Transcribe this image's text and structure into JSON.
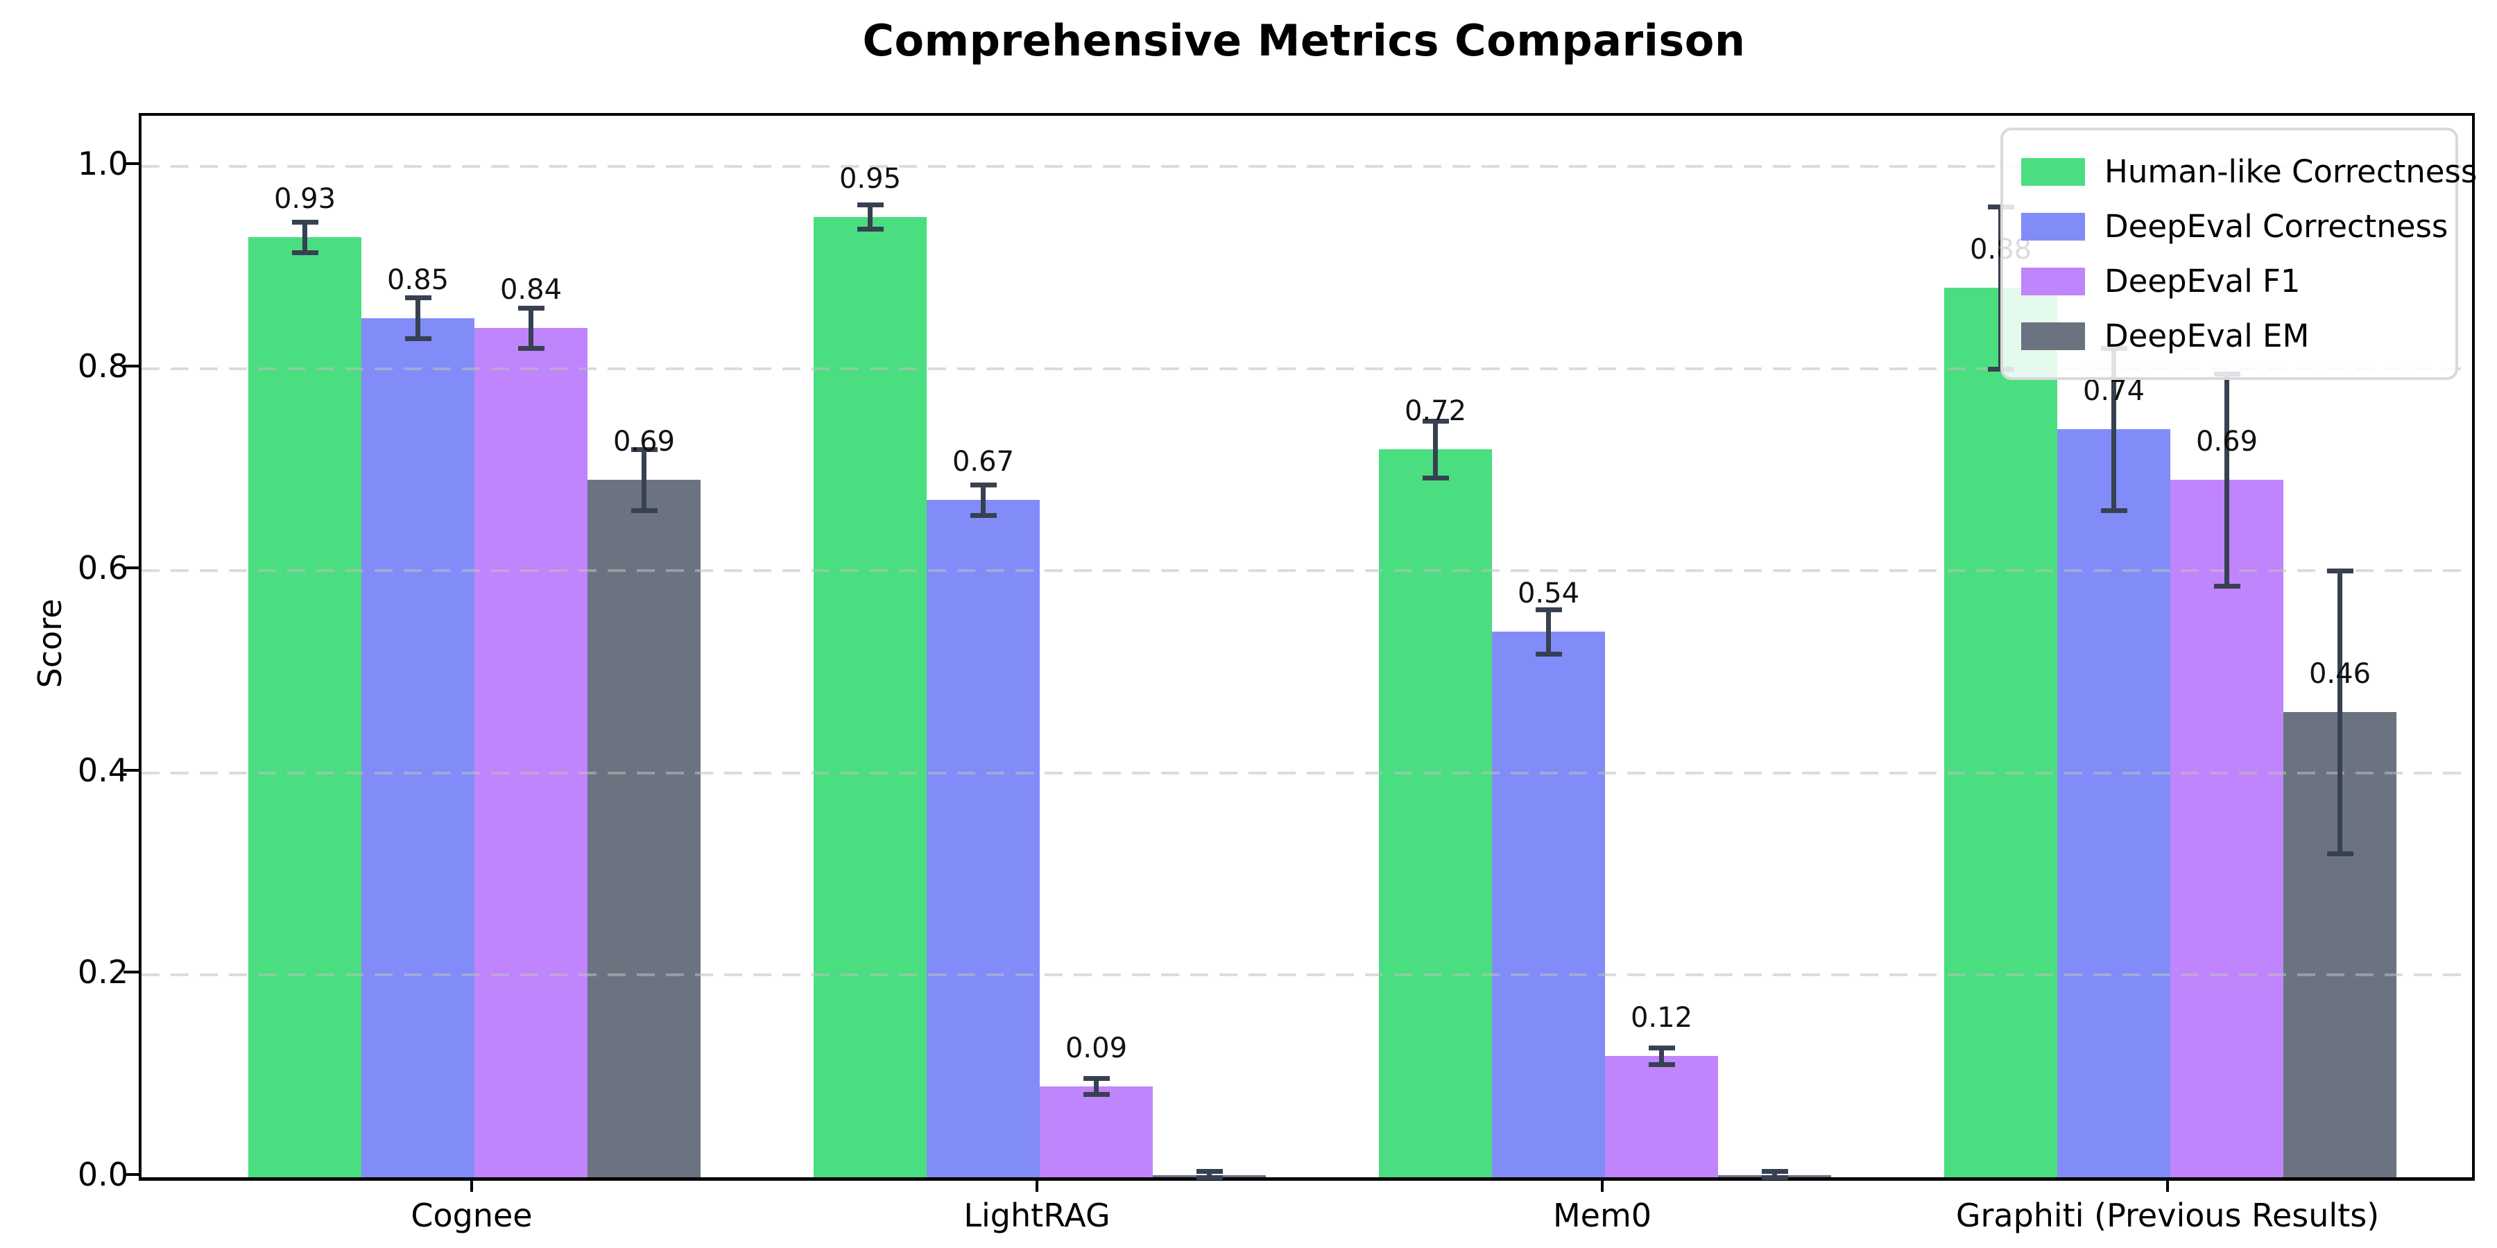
{
  "chart_data": {
    "type": "bar",
    "title": "Comprehensive Metrics Comparison",
    "ylabel": "Score",
    "xlabel": "",
    "categories": [
      "Cognee",
      "LightRAG",
      "Mem0",
      "Graphiti (Previous Results)"
    ],
    "series": [
      {
        "name": "Human-like Correctness",
        "color": "#4ade80",
        "values": [
          0.93,
          0.95,
          0.72,
          0.88
        ],
        "errors": [
          0.015,
          0.012,
          0.028,
          0.08
        ],
        "labels": [
          "0.93",
          "0.95",
          "0.72",
          "0.88"
        ]
      },
      {
        "name": "DeepEval Correctness",
        "color": "#818cf8",
        "values": [
          0.85,
          0.67,
          0.54,
          0.74
        ],
        "errors": [
          0.02,
          0.015,
          0.022,
          0.08
        ],
        "labels": [
          "0.85",
          "0.67",
          "0.54",
          "0.74"
        ]
      },
      {
        "name": "DeepEval F1",
        "color": "#c084fc",
        "values": [
          0.84,
          0.09,
          0.12,
          0.69
        ],
        "errors": [
          0.02,
          0.008,
          0.008,
          0.105
        ],
        "labels": [
          "0.84",
          "0.09",
          "0.12",
          "0.69"
        ]
      },
      {
        "name": "DeepEval EM",
        "color": "#6b7280",
        "values": [
          0.69,
          0.002,
          0.002,
          0.46
        ],
        "errors": [
          0.03,
          0.004,
          0.004,
          0.14
        ],
        "labels": [
          "0.69",
          "",
          "",
          "0.46"
        ]
      }
    ],
    "error_bar_color": "#374151",
    "yticks": [
      "0.0",
      "0.2",
      "0.4",
      "0.6",
      "0.8",
      "1.0"
    ],
    "ytick_values": [
      0.0,
      0.2,
      0.4,
      0.6,
      0.8,
      1.0
    ],
    "ylim": [
      0,
      1.05
    ],
    "grid": "dashed horizontal",
    "legend_position": "upper right"
  }
}
